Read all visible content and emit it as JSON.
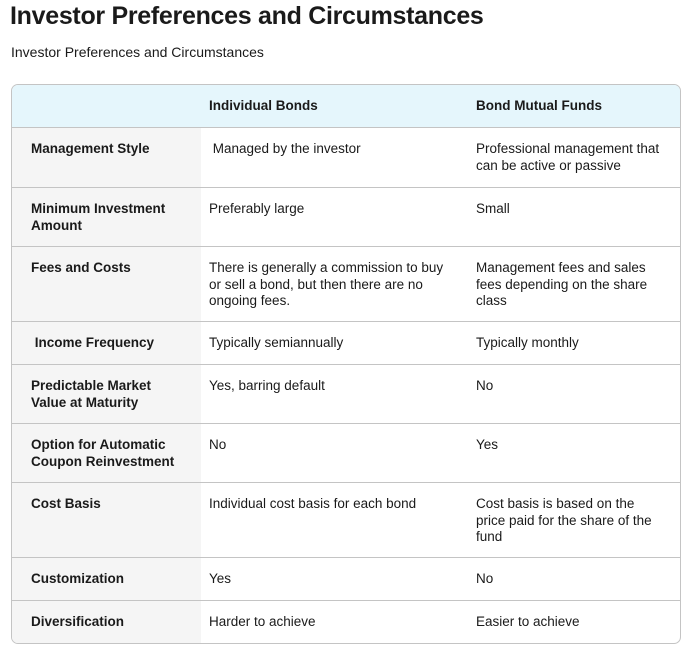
{
  "page": {
    "title": "Investor Preferences and Circumstances",
    "subtitle": "Investor Preferences and Circumstances"
  },
  "table": {
    "headers": [
      "",
      "Individual Bonds",
      "Bond Mutual Funds"
    ],
    "rows": [
      {
        "label": "Management Style",
        "bonds": " Managed by the investor",
        "funds": "Professional management that can be active or passive"
      },
      {
        "label": "Minimum Investment Amount",
        "bonds": "Preferably large",
        "funds": "Small"
      },
      {
        "label": "Fees and Costs",
        "bonds": "There is generally a commission to buy or sell a bond, but then there are no ongoing fees.",
        "funds": "Management fees and sales fees depending on the share class"
      },
      {
        "label": " Income Frequency",
        "bonds": "Typically semiannually",
        "funds": "Typically monthly"
      },
      {
        "label": "Predictable Market Value at Maturity",
        "bonds": "Yes, barring default",
        "funds": "No"
      },
      {
        "label": "Option for Automatic Coupon Reinvestment",
        "bonds": "No",
        "funds": "Yes"
      },
      {
        "label": "Cost Basis",
        "bonds": "Individual cost basis for each bond",
        "funds": "Cost basis is based on the price paid for the share of the fund"
      },
      {
        "label": "Customization",
        "bonds": "Yes",
        "funds": "No"
      },
      {
        "label": "Diversification",
        "bonds": "Harder to achieve",
        "funds": "Easier to achieve"
      }
    ]
  },
  "colors": {
    "header_bg": "#e5f6fc",
    "label_col_bg": "#f5f5f5",
    "border": "#c4c4c4",
    "text": "#1a1a1a"
  }
}
